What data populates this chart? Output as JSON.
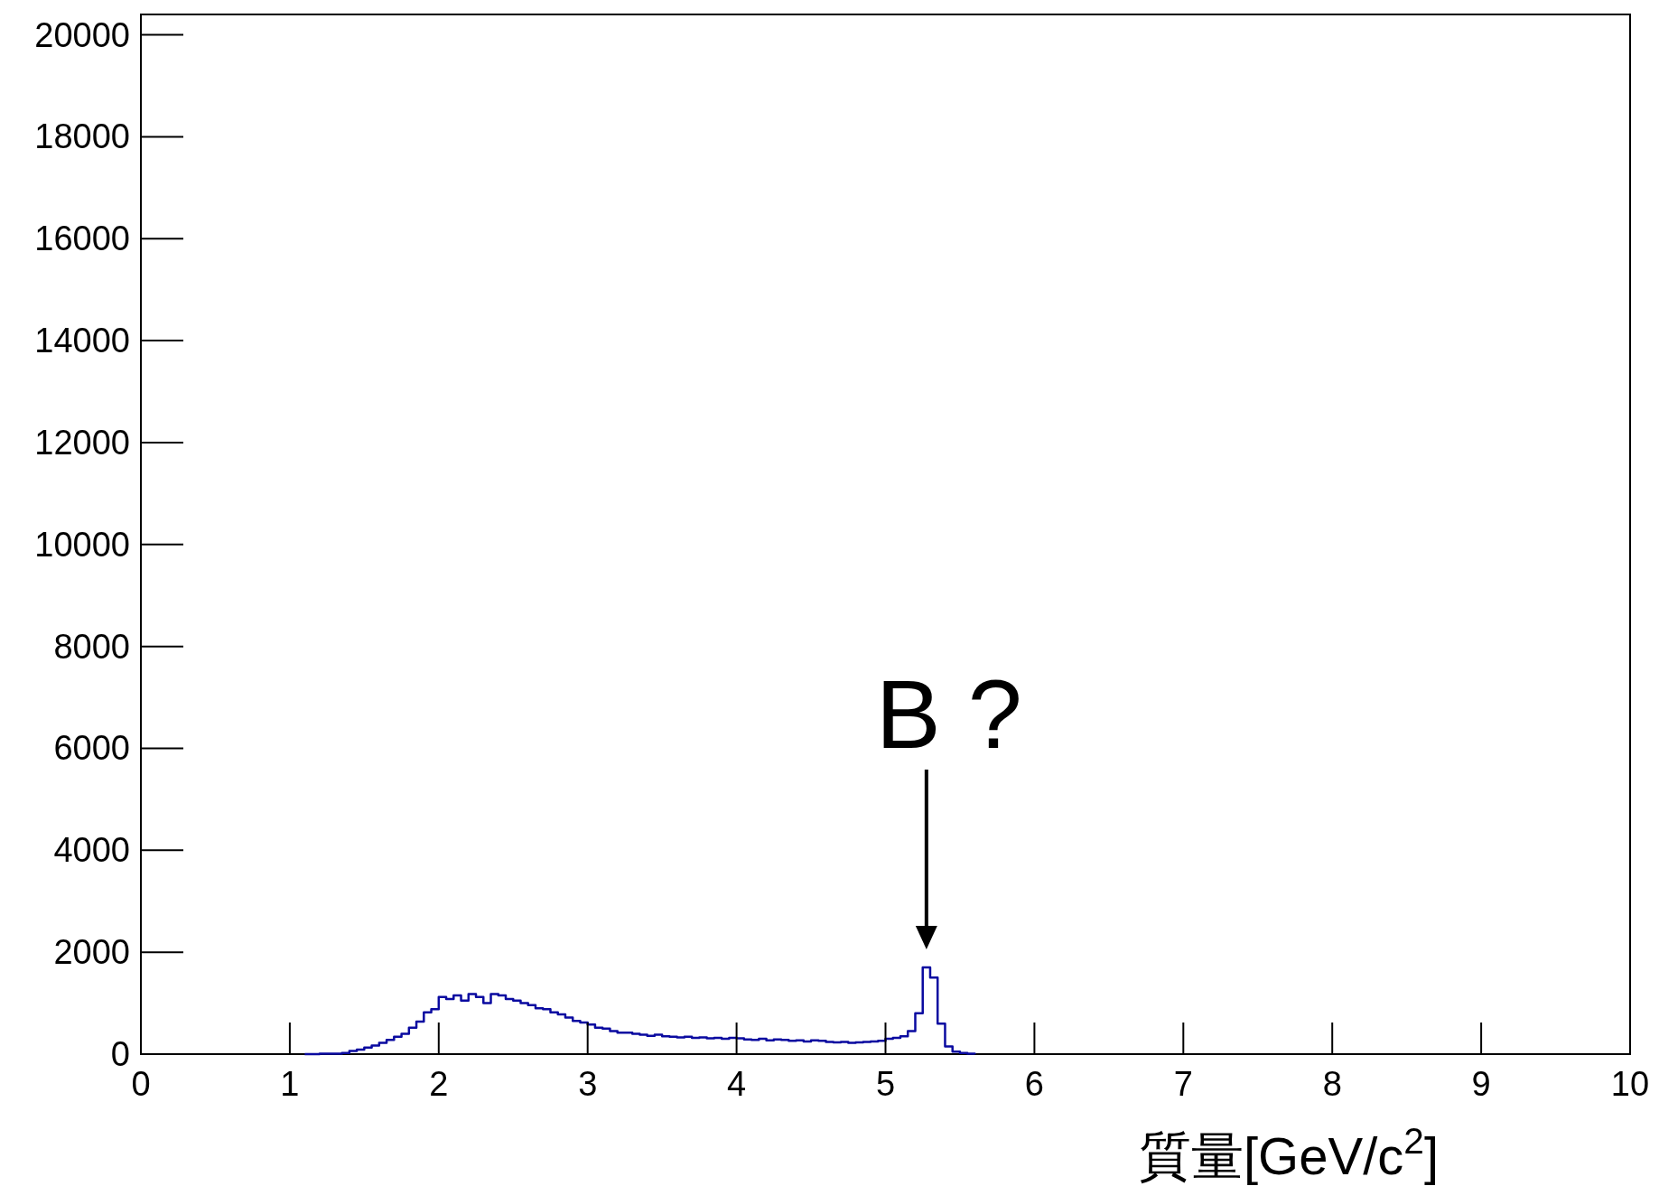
{
  "chart_data": {
    "type": "histogram",
    "xlabel": "質量[GeV/c$^{2}$]",
    "color": "#0a0aa0",
    "bins": [
      1.1,
      1.15,
      1.2,
      1.25,
      1.3,
      1.35,
      1.4,
      1.45,
      1.5,
      1.55,
      1.6,
      1.65,
      1.7,
      1.75,
      1.8,
      1.85,
      1.9,
      1.95,
      2.0,
      2.05,
      2.1,
      2.15,
      2.2,
      2.25,
      2.3,
      2.35,
      2.4,
      2.45,
      2.5,
      2.55,
      2.6,
      2.65,
      2.7,
      2.75,
      2.8,
      2.85,
      2.9,
      2.95,
      3.0,
      3.05,
      3.1,
      3.15,
      3.2,
      3.25,
      3.3,
      3.35,
      3.4,
      3.45,
      3.5,
      3.55,
      3.6,
      3.65,
      3.7,
      3.75,
      3.8,
      3.85,
      3.9,
      3.95,
      4.0,
      4.05,
      4.1,
      4.15,
      4.2,
      4.25,
      4.3,
      4.35,
      4.4,
      4.45,
      4.5,
      4.55,
      4.6,
      4.65,
      4.7,
      4.75,
      4.8,
      4.85,
      4.9,
      4.95,
      5.0,
      5.05,
      5.1,
      5.15,
      5.2,
      5.25,
      5.3,
      5.35,
      5.4,
      5.45,
      5.5,
      5.55,
      5.6
    ],
    "values": [
      0,
      0,
      10,
      10,
      10,
      20,
      60,
      90,
      130,
      170,
      220,
      280,
      340,
      400,
      520,
      640,
      820,
      880,
      1120,
      1080,
      1150,
      1050,
      1180,
      1120,
      1000,
      1180,
      1150,
      1080,
      1050,
      1000,
      960,
      900,
      880,
      820,
      780,
      720,
      650,
      620,
      580,
      520,
      500,
      450,
      420,
      420,
      400,
      380,
      360,
      380,
      350,
      340,
      330,
      340,
      320,
      330,
      310,
      320,
      300,
      320,
      310,
      290,
      280,
      300,
      270,
      290,
      280,
      260,
      270,
      250,
      270,
      260,
      240,
      230,
      240,
      220,
      230,
      240,
      250,
      260,
      300,
      320,
      350,
      450,
      800,
      1700,
      1500,
      600,
      150,
      50,
      20,
      10
    ],
    "xlim": [
      0,
      10
    ],
    "ylim": [
      0,
      20400
    ],
    "xticks": [
      0,
      1,
      2,
      3,
      4,
      5,
      6,
      7,
      8,
      9,
      10
    ],
    "yticks": [
      0,
      2000,
      4000,
      6000,
      8000,
      10000,
      12000,
      14000,
      16000,
      18000,
      20000
    ],
    "annotations": [
      "B ?"
    ]
  }
}
